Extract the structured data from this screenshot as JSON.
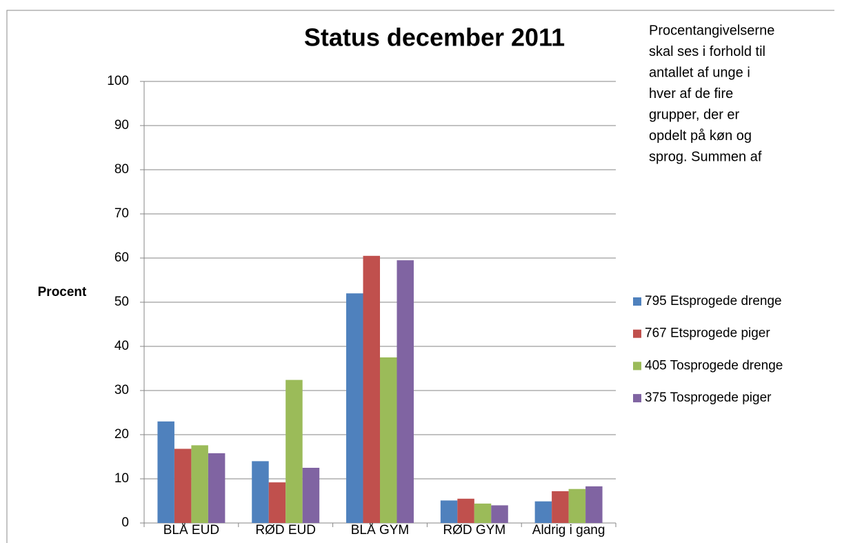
{
  "chart_data": {
    "type": "bar",
    "title": "Status december 2011",
    "y_label": "Procent",
    "annotation_lines": [
      "Procentangivelserne",
      "skal ses i forhold til",
      "antallet af unge i",
      "hver af de fire",
      "grupper, der er",
      "opdelt på køn og",
      "sprog. Summen af"
    ],
    "categories": [
      "BLÅ EUD",
      "RØD EUD",
      "BLÅ GYM",
      "RØD GYM",
      "Aldrig i gang"
    ],
    "series": [
      {
        "name": "795 Etsprogede drenge",
        "color": "#4f81bd",
        "values": [
          23,
          14,
          52,
          5.1,
          4.9
        ]
      },
      {
        "name": "767 Etsprogede piger",
        "color": "#c0504d",
        "values": [
          16.8,
          9.2,
          60.5,
          5.5,
          7.2
        ]
      },
      {
        "name": "405 Tosprogede drenge",
        "color": "#9bbb59",
        "values": [
          17.6,
          32.4,
          37.5,
          4.4,
          7.7
        ]
      },
      {
        "name": "375 Tosprogede piger",
        "color": "#8064a2",
        "values": [
          15.8,
          12.5,
          59.5,
          4,
          8.3
        ]
      }
    ],
    "ylim": [
      0,
      100
    ],
    "yticks": [
      0,
      10,
      20,
      30,
      40,
      50,
      60,
      70,
      80,
      90,
      100
    ],
    "grid": true,
    "legend": "right"
  }
}
